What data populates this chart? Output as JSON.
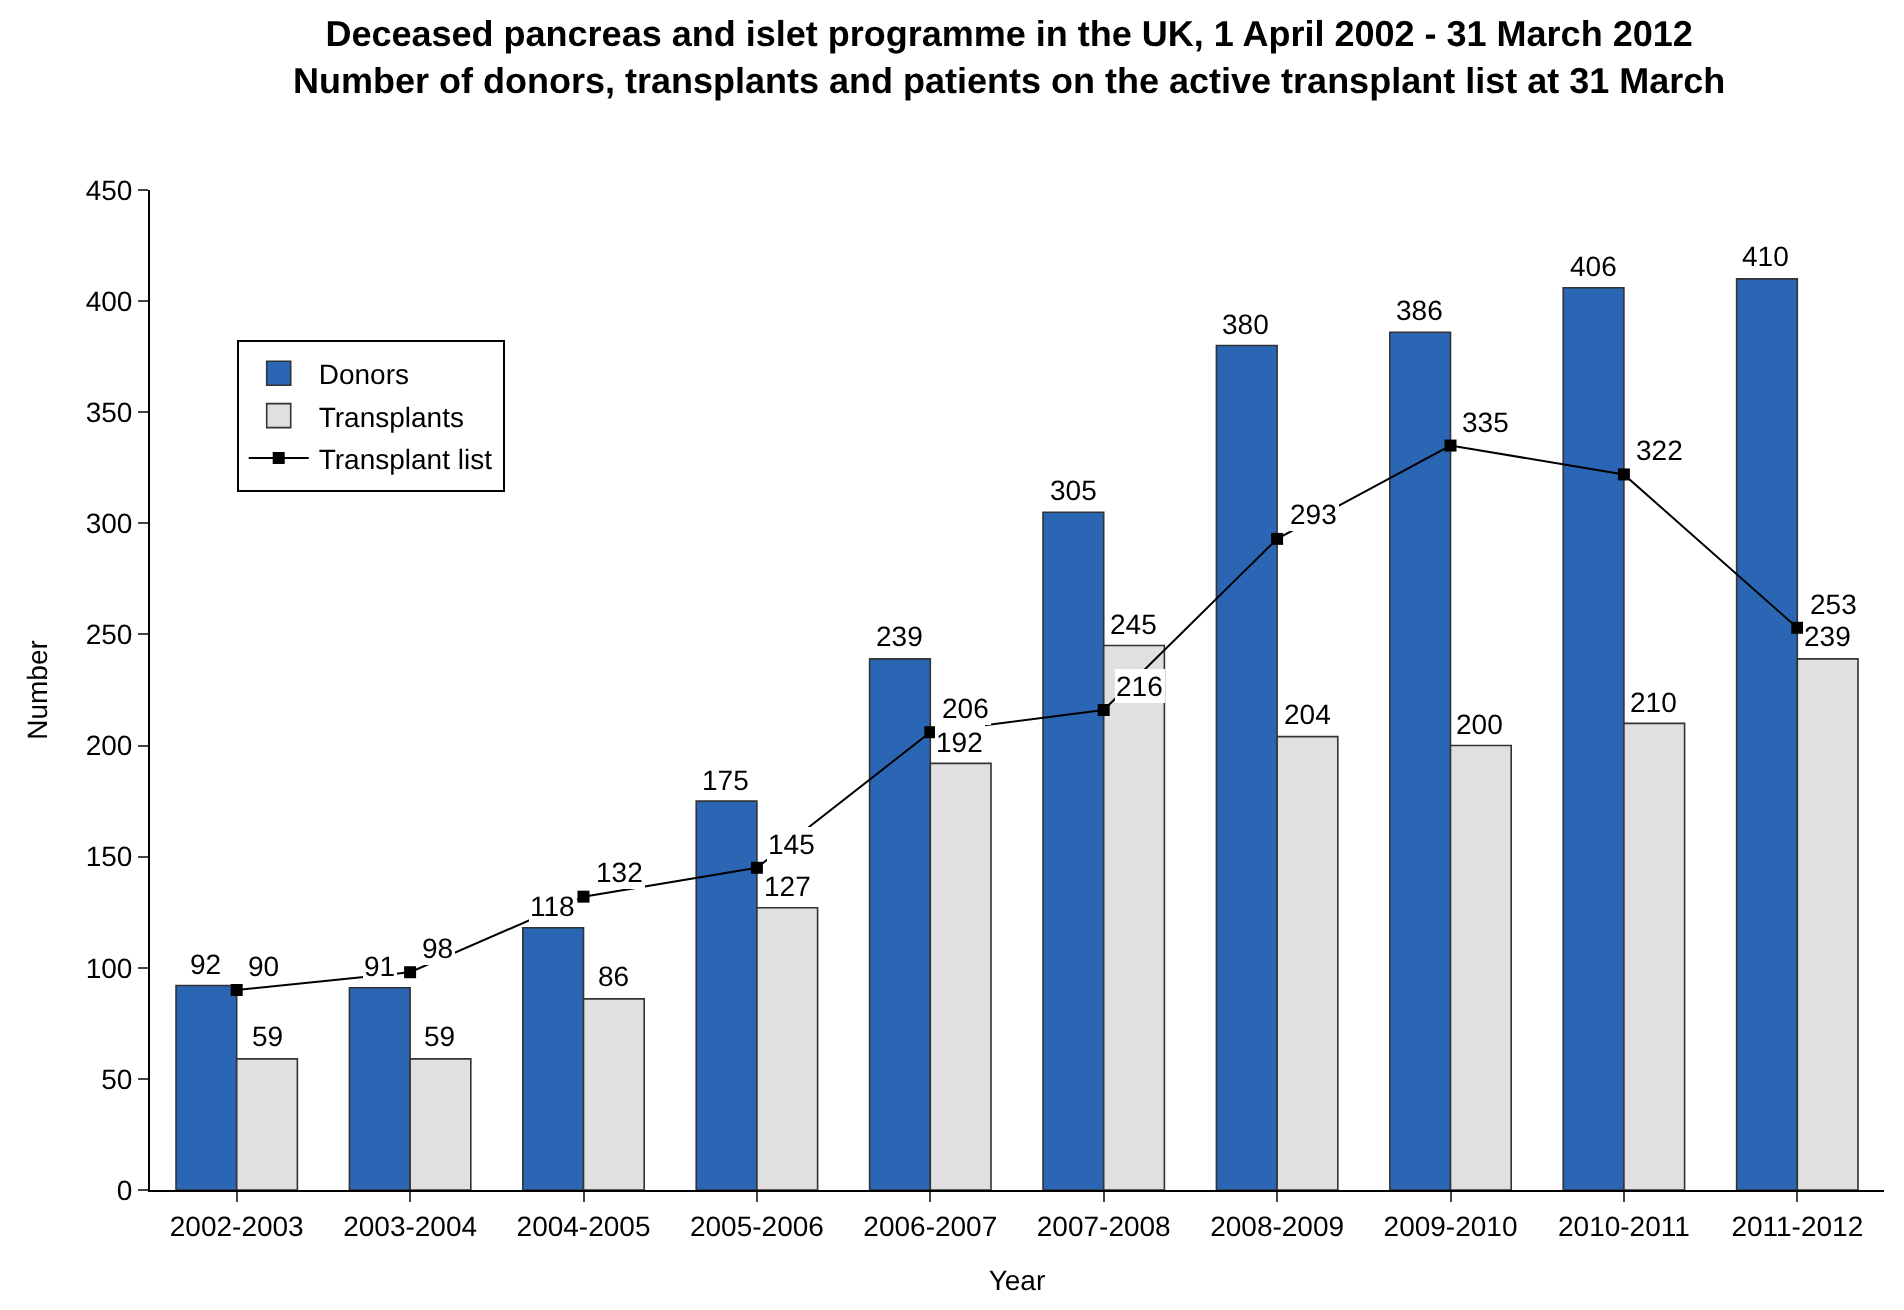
{
  "chart_data": {
    "type": "bar",
    "title": "Deceased pancreas and islet programme in the UK, 1 April 2002 - 31 March 2012",
    "subtitle": "Number of donors, transplants and patients on the active transplant list at 31 March",
    "xlabel": "Year",
    "ylabel": "Number",
    "categories": [
      "2002-2003",
      "2003-2004",
      "2004-2005",
      "2005-2006",
      "2006-2007",
      "2007-2008",
      "2008-2009",
      "2009-2010",
      "2010-2011",
      "2011-2012"
    ],
    "series": [
      {
        "name": "Donors",
        "color": "#2b66b5",
        "values": [
          92,
          91,
          118,
          175,
          239,
          305,
          380,
          386,
          406,
          410
        ]
      },
      {
        "name": "Transplants",
        "color": "#e0e0e0",
        "values": [
          59,
          59,
          86,
          127,
          192,
          245,
          204,
          200,
          210,
          239
        ]
      },
      {
        "name": "Transplant list",
        "type": "line",
        "color": "#000000",
        "marker": "square",
        "values": [
          90,
          98,
          132,
          145,
          206,
          216,
          293,
          335,
          322,
          253
        ]
      }
    ],
    "ylim": [
      0,
      450
    ],
    "yticks": [
      0,
      50,
      100,
      150,
      200,
      250,
      300,
      350,
      400,
      450
    ],
    "data_labels": true,
    "legend": "top left"
  }
}
